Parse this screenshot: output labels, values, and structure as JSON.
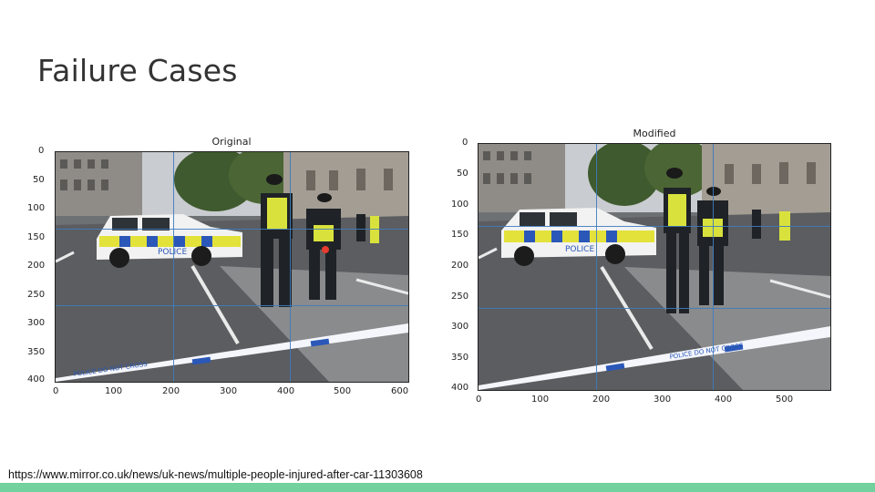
{
  "slide": {
    "title": "Failure Cases",
    "source_url": "https://www.mirror.co.uk/news/uk-news/multiple-people-injured-after-car-11303608",
    "footer_color": "#72d19c"
  },
  "plots": [
    {
      "title": "Original",
      "x_ticks": [
        "0",
        "100",
        "200",
        "300",
        "400",
        "500",
        "600"
      ],
      "y_ticks": [
        "0",
        "50",
        "100",
        "150",
        "200",
        "250",
        "300",
        "350",
        "400"
      ],
      "grid_color": "#3e7bbf",
      "car_text": "POLICE",
      "tape_text": "POLICE DO NOT CROSS"
    },
    {
      "title": "Modified",
      "x_ticks": [
        "0",
        "100",
        "200",
        "300",
        "400",
        "500"
      ],
      "y_ticks": [
        "0",
        "50",
        "100",
        "150",
        "200",
        "250",
        "300",
        "350",
        "400"
      ],
      "grid_color": "#3e7bbf",
      "car_text": "POLICE",
      "tape_text": "POLICE DO NOT CROSS"
    }
  ]
}
